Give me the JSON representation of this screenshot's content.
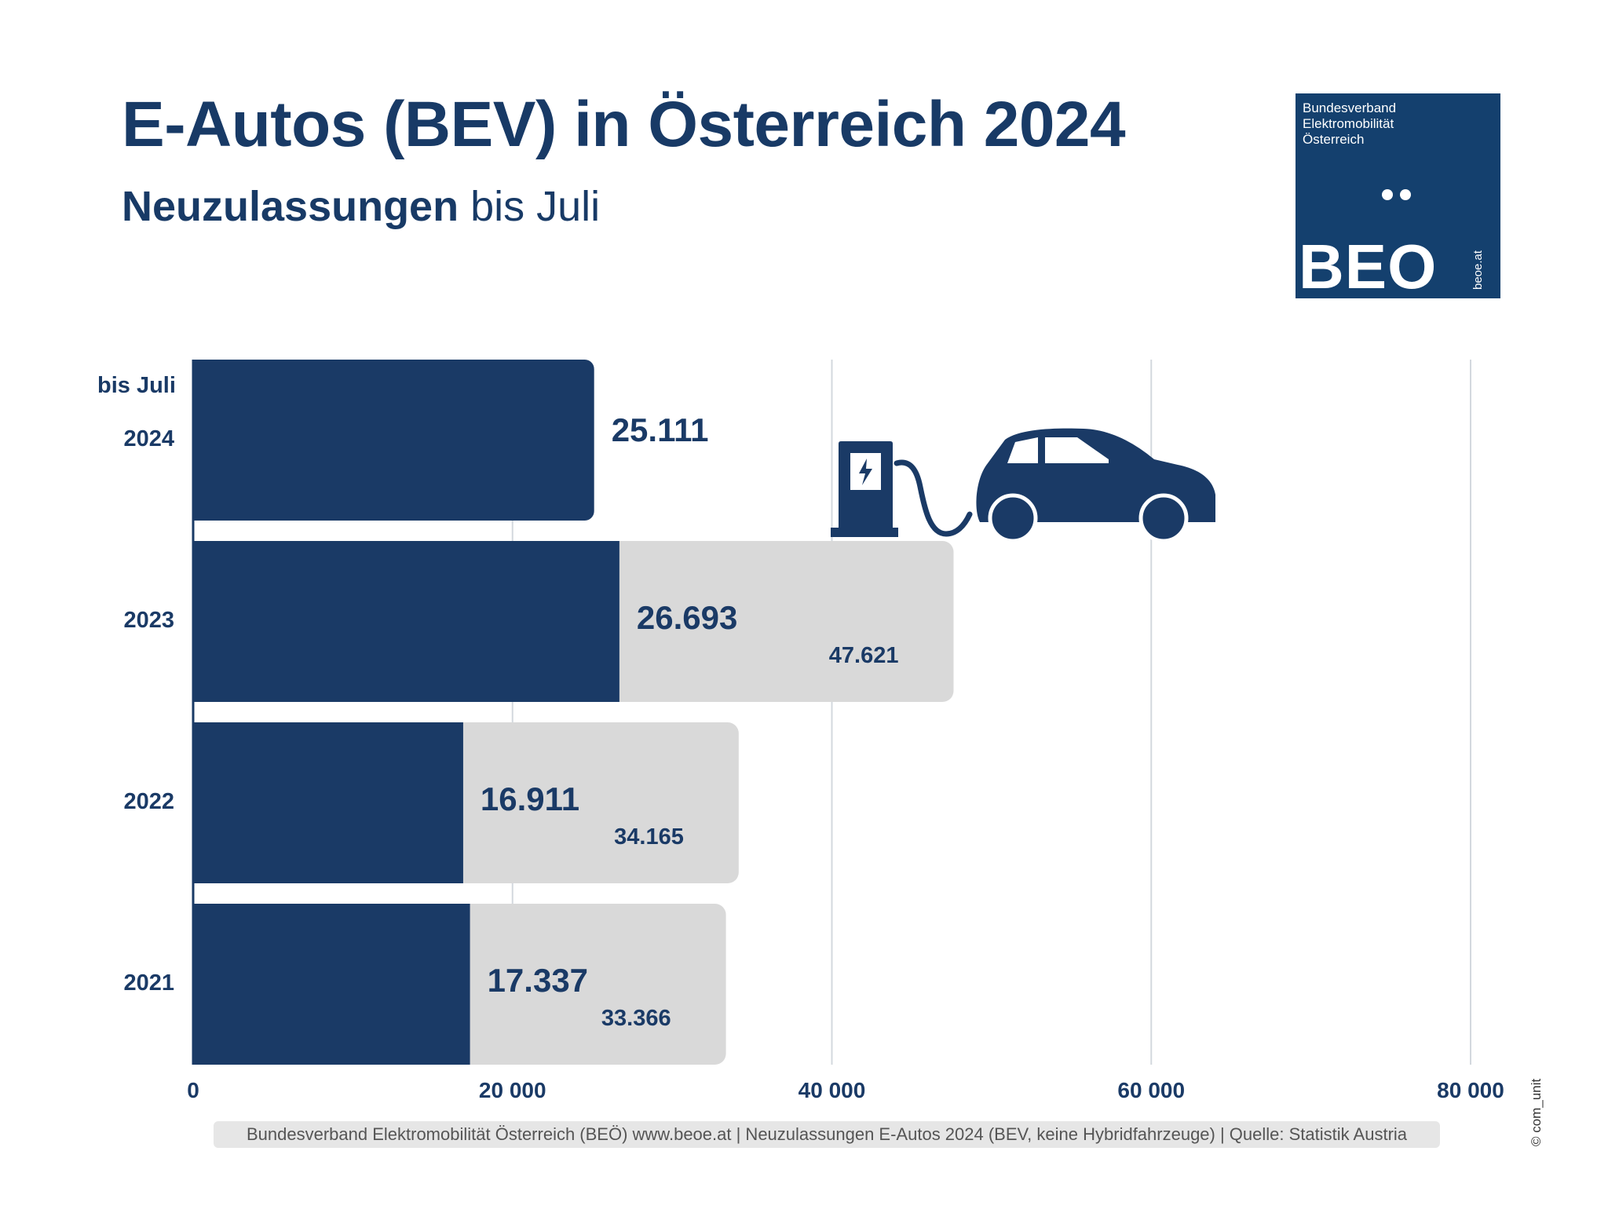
{
  "header": {
    "title": "E-Autos (BEV) in Österreich 2024",
    "subtitle_bold": "Neuzulassungen",
    "subtitle_rest": " bis Juli"
  },
  "logo": {
    "org_lines": [
      "Bundesverband",
      "Elektromobilität",
      "Österreich"
    ],
    "word": "BEO",
    "url": "beoe.at"
  },
  "chart_data": {
    "type": "bar",
    "orientation": "horizontal",
    "categories": [
      "2024",
      "2023",
      "2022",
      "2021"
    ],
    "category_header": "bis Juli",
    "series": [
      {
        "values": [
          25111,
          26693,
          16911,
          17337
        ],
        "labels": [
          "25.111",
          "26.693",
          "16.911",
          "17.337"
        ],
        "color": "#1a3a66"
      },
      {
        "values": [
          null,
          47621,
          34165,
          33366
        ],
        "labels": [
          "",
          "47.621",
          "34.165",
          "33.366"
        ],
        "color": "#d9d9d9"
      }
    ],
    "xlim": [
      0,
      80000
    ],
    "xticks": [
      0,
      20000,
      40000,
      60000,
      80000
    ],
    "xtick_labels": [
      "0",
      "20 000",
      "40 000",
      "60 000",
      "80 000"
    ],
    "grid": true
  },
  "footer": {
    "text": "Bundesverband Elektromobilität Österreich (BEÖ) www.beoe.at | Neuzulassungen E-Autos 2024 (BEV, keine Hybridfahrzeuge) | Quelle: Statistik Austria"
  },
  "copyright": "© com_unit",
  "colors": {
    "navy": "#1a3a66",
    "grey": "#d9d9d9",
    "grid": "#d3d8de"
  },
  "icons": [
    "charging-station-icon",
    "electric-car-icon"
  ]
}
